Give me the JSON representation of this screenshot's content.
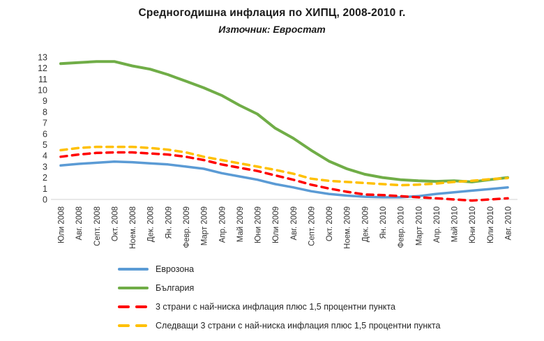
{
  "title": "Средногодишна инфлация по ХИПЦ, 2008-2010 г.",
  "subtitle": "Източник: Евростат",
  "colors": {
    "eurozone_blue": "#5B9BD5",
    "bulgaria_green": "#70AD47",
    "lowest3_red": "#FF0000",
    "next3_gold": "#FFC000",
    "axis_line": "#D9D9D9",
    "tick_text": "#333333"
  },
  "chart_data": {
    "type": "line",
    "title": "Средногодишна инфлация по ХИПЦ, 2008-2010 г.",
    "subtitle": "Източник: Евростат",
    "xlabel": "",
    "ylabel": "",
    "ylim": [
      0,
      13
    ],
    "yticks": [
      0,
      1,
      2,
      3,
      4,
      5,
      6,
      7,
      8,
      9,
      10,
      11,
      12,
      13
    ],
    "grid": false,
    "legend_position": "bottom-left",
    "categories": [
      "Юли 2008",
      "Авг. 2008",
      "Септ. 2008",
      "Окт. 2008",
      "Ноем. 2008",
      "Дек. 2008",
      "Ян. 2009",
      "Февр. 2009",
      "Март 2009",
      "Апр. 2009",
      "Май 2009",
      "Юни 2009",
      "Юли 2009",
      "Авг. 2009",
      "Септ. 2009",
      "Окт. 2009",
      "Ноем. 2009",
      "Дек. 2009",
      "Ян. 2010",
      "Февр. 2010",
      "Март 2010",
      "Апр. 2010",
      "Май 2010",
      "Юни 2010",
      "Юли 2010",
      "Авг. 2010"
    ],
    "series": [
      {
        "name": "Еврозона",
        "color": "#5B9BD5",
        "style": "solid",
        "width": 3.5,
        "values": [
          3.1,
          3.25,
          3.35,
          3.45,
          3.4,
          3.3,
          3.2,
          3.0,
          2.8,
          2.4,
          2.1,
          1.8,
          1.4,
          1.1,
          0.75,
          0.5,
          0.35,
          0.25,
          0.2,
          0.2,
          0.3,
          0.5,
          0.65,
          0.8,
          0.95,
          1.1
        ]
      },
      {
        "name": "България",
        "color": "#70AD47",
        "style": "solid",
        "width": 4,
        "values": [
          12.4,
          12.5,
          12.6,
          12.6,
          12.2,
          11.9,
          11.4,
          10.8,
          10.2,
          9.5,
          8.6,
          7.8,
          6.5,
          5.6,
          4.5,
          3.5,
          2.8,
          2.3,
          2.0,
          1.8,
          1.7,
          1.65,
          1.7,
          1.6,
          1.8,
          2.0
        ]
      },
      {
        "name": "3 страни с най-ниска инфлация плюс 1,5 процентни пункта",
        "color": "#FF0000",
        "style": "dashed",
        "width": 3.5,
        "values": [
          3.9,
          4.1,
          4.25,
          4.3,
          4.3,
          4.2,
          4.1,
          3.9,
          3.6,
          3.2,
          2.9,
          2.6,
          2.2,
          1.8,
          1.35,
          1.0,
          0.7,
          0.45,
          0.4,
          0.3,
          0.2,
          0.1,
          0.0,
          -0.1,
          0.0,
          0.1
        ]
      },
      {
        "name": "Следващи 3 страни с най-ниска инфлация плюс 1,5 процентни пункта",
        "color": "#FFC000",
        "style": "dashed",
        "width": 3.5,
        "values": [
          4.5,
          4.7,
          4.8,
          4.8,
          4.8,
          4.7,
          4.55,
          4.3,
          3.9,
          3.6,
          3.3,
          3.0,
          2.7,
          2.35,
          1.9,
          1.7,
          1.6,
          1.5,
          1.4,
          1.3,
          1.35,
          1.45,
          1.6,
          1.7,
          1.85,
          1.95
        ]
      }
    ]
  }
}
